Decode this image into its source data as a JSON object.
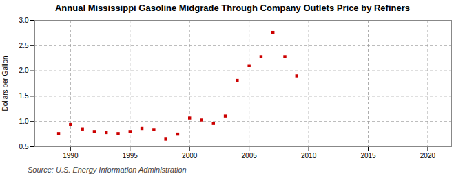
{
  "chart_data": {
    "type": "scatter",
    "title": "Annual Mississippi Gasoline Midgrade Through Company Outlets Price by Refiners",
    "ylabel": "Dollars per Gallon",
    "source": "Source: U.S. Energy Information Administration",
    "x": [
      1989,
      1990,
      1991,
      1992,
      1993,
      1994,
      1995,
      1996,
      1997,
      1998,
      1999,
      2000,
      2001,
      2002,
      2003,
      2004,
      2005,
      2006,
      2007,
      2008,
      2009
    ],
    "values": [
      0.76,
      0.94,
      0.85,
      0.8,
      0.78,
      0.76,
      0.8,
      0.86,
      0.84,
      0.65,
      0.75,
      1.07,
      1.03,
      0.96,
      1.11,
      1.81,
      2.1,
      2.28,
      2.76,
      2.28,
      1.9
    ],
    "color": "#cc0000",
    "marker": "square",
    "xlim": [
      1987,
      2022
    ],
    "xticks": [
      1990,
      1995,
      2000,
      2005,
      2010,
      2015,
      2020
    ],
    "ylim": [
      0.5,
      3.0
    ],
    "yticks": [
      0.5,
      {
        "value": 1.0,
        "label": "1.0"
      },
      1.5,
      {
        "value": 2.0,
        "label": "2.0"
      },
      2.5,
      {
        "value": 3.0,
        "label": "3.0"
      }
    ],
    "grid": true
  }
}
